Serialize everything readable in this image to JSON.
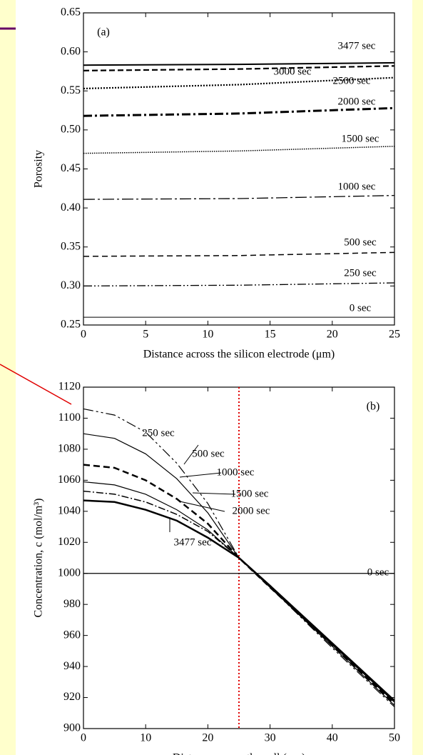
{
  "chart_data": [
    {
      "type": "line",
      "annotation": "(a)",
      "xlabel": "Distance across the silicon electrode (μm)",
      "ylabel": "Porosity",
      "x": [
        0,
        12.5,
        25
      ],
      "xlim": [
        0,
        25
      ],
      "xticks": [
        0,
        5,
        10,
        15,
        20,
        25
      ],
      "ylim": [
        0.25,
        0.65
      ],
      "yticks": [
        0.25,
        {
          "value": 0.3,
          "label": "0.30"
        },
        0.35,
        {
          "value": 0.4,
          "label": "0.40"
        },
        0.45,
        {
          "value": 0.5,
          "label": "0.50"
        },
        0.55,
        {
          "value": 0.6,
          "label": "0.60"
        },
        0.65
      ],
      "series": [
        {
          "name": "0 sec",
          "color": "#000000",
          "values": [
            0.26,
            0.26,
            0.26
          ]
        },
        {
          "name": "250 sec",
          "color": "#000000",
          "values": [
            0.3,
            0.301,
            0.304
          ]
        },
        {
          "name": "500 sec",
          "color": "#000000",
          "values": [
            0.338,
            0.339,
            0.343
          ]
        },
        {
          "name": "1000 sec",
          "color": "#000000",
          "values": [
            0.411,
            0.412,
            0.416
          ]
        },
        {
          "name": "1500 sec",
          "color": "#000000",
          "values": [
            0.47,
            0.473,
            0.479
          ]
        },
        {
          "name": "2000 sec",
          "color": "#000000",
          "values": [
            0.518,
            0.521,
            0.528
          ]
        },
        {
          "name": "2500 sec",
          "color": "#000000",
          "values": [
            0.553,
            0.558,
            0.567
          ]
        },
        {
          "name": "3000 sec",
          "color": "#000000",
          "values": [
            0.576,
            0.578,
            0.582
          ]
        },
        {
          "name": "3477 sec",
          "color": "#000000",
          "values": [
            0.583,
            0.584,
            0.586
          ]
        }
      ]
    },
    {
      "type": "line",
      "annotation": "(b)",
      "xlabel": "Distance across the cell (μm)",
      "ylabel": "Concentration, c (mol/m³)",
      "x": [
        0,
        5,
        10,
        15,
        20,
        25,
        30,
        40,
        50
      ],
      "xlim": [
        0,
        50
      ],
      "xticks": [
        0,
        10,
        20,
        30,
        40,
        50
      ],
      "ylim": [
        900,
        1120
      ],
      "yticks": [
        900,
        920,
        940,
        960,
        980,
        1000,
        1020,
        1040,
        1060,
        1080,
        1100,
        1120
      ],
      "vline": {
        "x": 25,
        "color": "#e00000"
      },
      "series": [
        {
          "name": "250 sec",
          "color": "#000000",
          "values": [
            1106,
            1102,
            1091,
            1071,
            1045,
            1010,
            991,
            952,
            914
          ]
        },
        {
          "name": "500 sec",
          "color": "#000000",
          "values": [
            1090,
            1087,
            1077,
            1061,
            1039,
            1010,
            991,
            953,
            915
          ]
        },
        {
          "name": "1000 sec",
          "color": "#000000",
          "values": [
            1070,
            1068,
            1060,
            1048,
            1032,
            1010,
            991,
            954,
            916
          ]
        },
        {
          "name": "1500 sec",
          "color": "#000000",
          "values": [
            1059,
            1057,
            1051,
            1041,
            1028,
            1010,
            991,
            954,
            917
          ]
        },
        {
          "name": "2000 sec",
          "color": "#000000",
          "values": [
            1053,
            1051,
            1046,
            1038,
            1027,
            1010,
            992,
            955,
            917
          ]
        },
        {
          "name": "3477 sec",
          "color": "#000000",
          "values": [
            1047,
            1046,
            1041,
            1034,
            1023,
            1010,
            992,
            955,
            918
          ]
        },
        {
          "name": "0 sec",
          "color": "#000000",
          "values": [
            1000,
            1000,
            1000,
            1000,
            1000,
            1000,
            1000,
            1000,
            1000
          ]
        }
      ]
    }
  ]
}
